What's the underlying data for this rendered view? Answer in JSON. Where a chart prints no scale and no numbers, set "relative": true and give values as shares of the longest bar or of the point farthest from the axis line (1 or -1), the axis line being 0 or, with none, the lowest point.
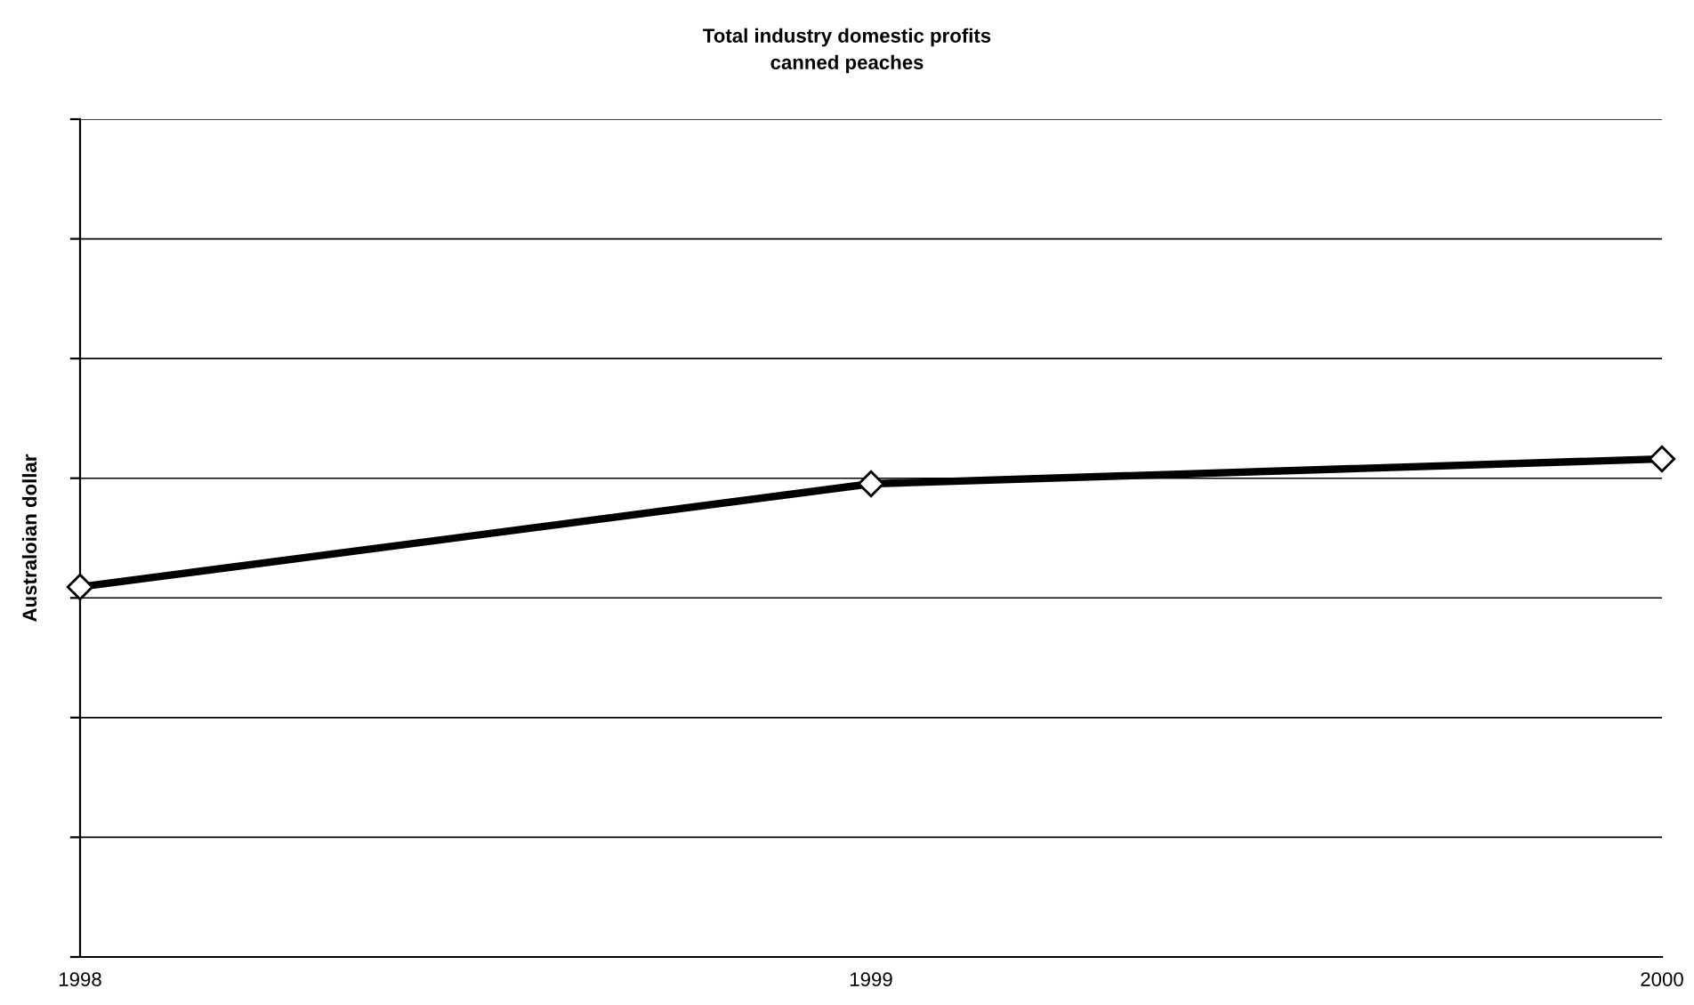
{
  "chart_data": {
    "type": "line",
    "title": "Total industry domestic profits",
    "subtitle": "canned peaches",
    "ylabel": "Australoian dollar",
    "categories": [
      "1998",
      "1999",
      "2000"
    ],
    "series": [
      {
        "color": "#000000",
        "values": [
          0.743,
          0.95,
          1.0
        ]
      }
    ],
    "relative": true,
    "grid": "y",
    "marker": "diamond",
    "line_style": "solid"
  }
}
